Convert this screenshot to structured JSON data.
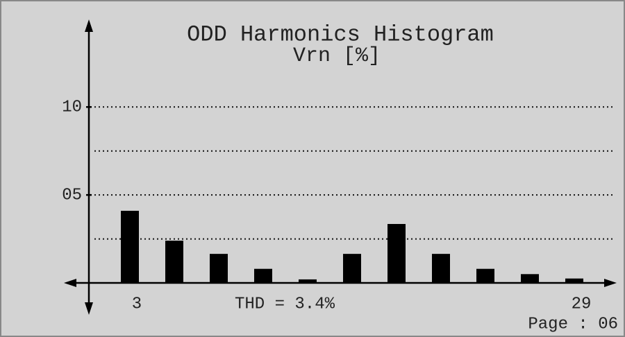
{
  "chart_data": {
    "type": "bar",
    "title": "ODD Harmonics Histogram",
    "subtitle": "Vrn [%]",
    "annotation": "THD = 3.4%",
    "page_label": "Page : 06",
    "categories": [
      "3",
      null,
      null,
      null,
      null,
      null,
      null,
      null,
      null,
      null,
      "29"
    ],
    "values": [
      4.1,
      2.4,
      1.65,
      0.8,
      0.2,
      1.65,
      3.35,
      1.65,
      0.8,
      0.5,
      0.25
    ],
    "color": "#000000",
    "ylim": [
      0,
      14.9
    ],
    "yticks": [
      {
        "value": 5,
        "label": "05"
      },
      {
        "value": 10,
        "label": "10"
      }
    ],
    "grid_lines": [
      2.5,
      5,
      7.5,
      10
    ],
    "grid": true
  }
}
